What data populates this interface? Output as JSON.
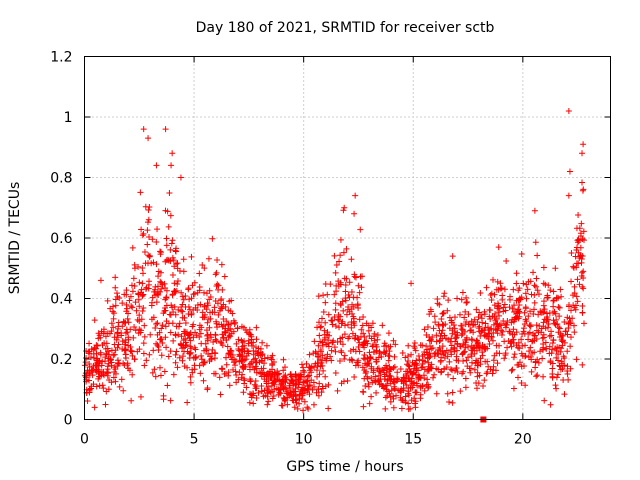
{
  "chart_data": {
    "type": "scatter",
    "title": "Day 180 of 2021, SRMTID for receiver sctb",
    "xlabel": "GPS time / hours",
    "ylabel": "SRMTID / TECUs",
    "xlim": [
      0,
      24
    ],
    "ylim": [
      0,
      1.2
    ],
    "xticks": [
      0,
      5,
      10,
      15,
      20
    ],
    "xtick_labels": [
      "0",
      "5",
      "10",
      "15",
      "20"
    ],
    "yticks": [
      0,
      0.2,
      0.4,
      0.6,
      0.8,
      1.0,
      1.2
    ],
    "ytick_labels": [
      "0",
      "0.2",
      "0.4",
      "0.6",
      "0.8",
      "1",
      "1.2"
    ],
    "grid": true,
    "marker": "+",
    "color": "#ff0000",
    "envelope": {
      "x": [
        0,
        0.5,
        1,
        1.5,
        2,
        2.5,
        2.8,
        3.2,
        3.6,
        4,
        4.5,
        5,
        5.5,
        6,
        6.5,
        7,
        7.5,
        8,
        8.5,
        9,
        9.5,
        10,
        10.5,
        11,
        11.5,
        12,
        12.5,
        13,
        13.5,
        14,
        14.5,
        15,
        15.5,
        16,
        16.5,
        17,
        17.5,
        18,
        18.5,
        19,
        19.5,
        20,
        20.5,
        21,
        21.5,
        22,
        22.3,
        22.6,
        22.8
      ],
      "center": [
        0.13,
        0.17,
        0.2,
        0.25,
        0.28,
        0.35,
        0.45,
        0.42,
        0.38,
        0.4,
        0.33,
        0.28,
        0.3,
        0.32,
        0.26,
        0.22,
        0.2,
        0.17,
        0.13,
        0.11,
        0.1,
        0.12,
        0.16,
        0.25,
        0.33,
        0.36,
        0.28,
        0.2,
        0.17,
        0.15,
        0.11,
        0.13,
        0.19,
        0.24,
        0.26,
        0.24,
        0.26,
        0.24,
        0.28,
        0.32,
        0.3,
        0.3,
        0.33,
        0.31,
        0.26,
        0.22,
        0.35,
        0.5,
        0.52
      ],
      "spread": [
        0.05,
        0.07,
        0.09,
        0.11,
        0.13,
        0.18,
        0.22,
        0.2,
        0.18,
        0.17,
        0.13,
        0.11,
        0.12,
        0.12,
        0.1,
        0.08,
        0.08,
        0.07,
        0.05,
        0.04,
        0.04,
        0.05,
        0.07,
        0.11,
        0.15,
        0.15,
        0.12,
        0.09,
        0.08,
        0.07,
        0.05,
        0.06,
        0.09,
        0.1,
        0.11,
        0.1,
        0.11,
        0.1,
        0.11,
        0.13,
        0.12,
        0.12,
        0.13,
        0.13,
        0.12,
        0.1,
        0.14,
        0.18,
        0.18
      ]
    },
    "n_points": 2200,
    "outliers": [
      {
        "x": 2.7,
        "y": 0.96
      },
      {
        "x": 3.7,
        "y": 0.96
      },
      {
        "x": 2.9,
        "y": 0.93
      },
      {
        "x": 4.0,
        "y": 0.88
      },
      {
        "x": 3.95,
        "y": 0.84
      },
      {
        "x": 4.4,
        "y": 0.8
      },
      {
        "x": 11.85,
        "y": 0.7
      },
      {
        "x": 12.35,
        "y": 0.74
      },
      {
        "x": 12.3,
        "y": 0.68
      },
      {
        "x": 20.55,
        "y": 0.69
      },
      {
        "x": 22.1,
        "y": 1.02
      },
      {
        "x": 22.15,
        "y": 0.82
      },
      {
        "x": 22.75,
        "y": 0.91
      },
      {
        "x": 22.7,
        "y": 0.88
      },
      {
        "x": 22.1,
        "y": 0.74
      },
      {
        "x": 18.9,
        "y": 0.57
      },
      {
        "x": 16.8,
        "y": 0.54
      },
      {
        "x": 14.9,
        "y": 0.45
      },
      {
        "x": 0.75,
        "y": 0.46
      },
      {
        "x": 1.4,
        "y": 0.47
      },
      {
        "x": 15.1,
        "y": 0.04
      }
    ],
    "special_marker": {
      "x": 18.2,
      "y": 0.0,
      "shape": "square"
    }
  }
}
